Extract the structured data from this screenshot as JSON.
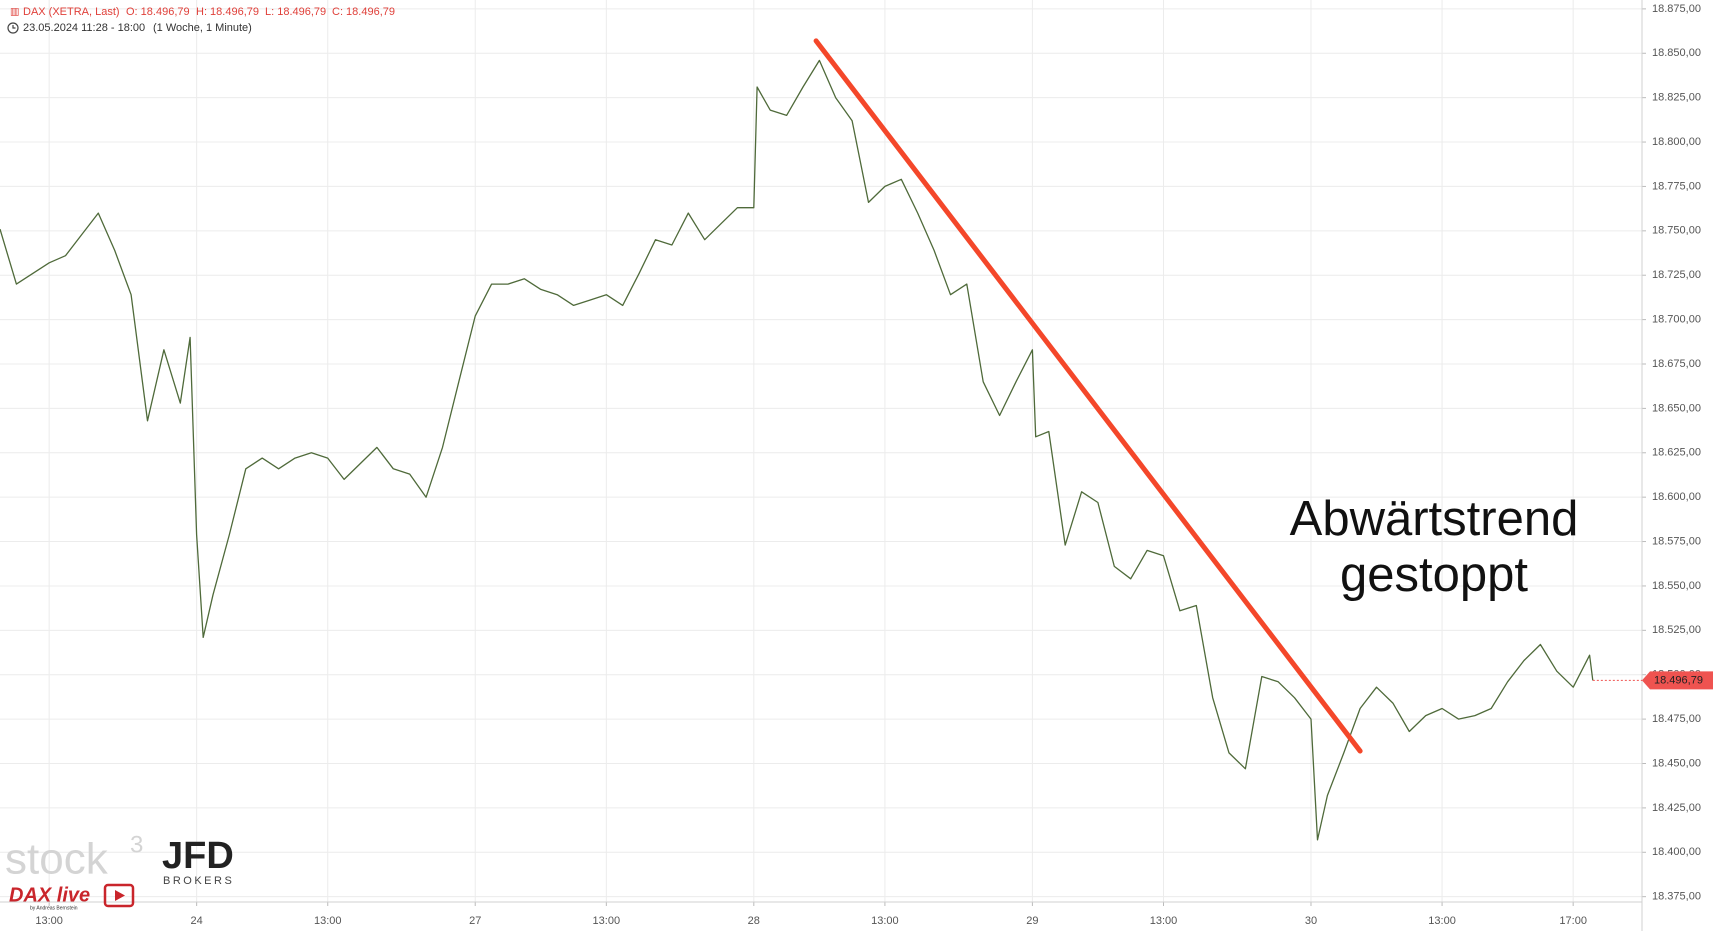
{
  "chart_data": {
    "type": "line",
    "header": {
      "instrument": "DAX (XETRA, Last)",
      "open": "O: 18.496,79",
      "high": "H: 18.496,79",
      "low": "L: 18.496,79",
      "close": "C: 18.496,79",
      "period": "23.05.2024 11:28 - 18:00",
      "interval": "(1 Woche, 1 Minute)"
    },
    "x": [
      0,
      0.5,
      1,
      1.5,
      2,
      2.5,
      3,
      3.5,
      4,
      4.5,
      5,
      5.5,
      5.8,
      6,
      6.2,
      6.5,
      7,
      7.5,
      8,
      8.5,
      9,
      9.5,
      10,
      10.5,
      11,
      11.5,
      12,
      12.5,
      13,
      13.5,
      14,
      14.5,
      15,
      15.5,
      16,
      16.5,
      17,
      17.5,
      18,
      18.5,
      19,
      19.5,
      20,
      20.5,
      21,
      21.5,
      22,
      22.5,
      23,
      23.1,
      23.5,
      24,
      24.5,
      25,
      25.5,
      26,
      26.5,
      27,
      27.5,
      28,
      28.5,
      29,
      29.5,
      30,
      30.5,
      31,
      31.5,
      31.6,
      32,
      32.5,
      33,
      33.5,
      34,
      34.5,
      35,
      35.5,
      36,
      36.5,
      37,
      37.5,
      38,
      38.5,
      39,
      39.5,
      40,
      40.2,
      40.5,
      41,
      41.5,
      42,
      42.5,
      43,
      43.5,
      44,
      44.5,
      45,
      45.5,
      46,
      46.5,
      47,
      47.5,
      48,
      48.5,
      48.6
    ],
    "series": [
      {
        "name": "DAX",
        "color": "#4f6a3a",
        "values": [
          18751,
          18720,
          18726,
          18732,
          18736,
          18748,
          18760,
          18739,
          18714,
          18643,
          18683,
          18653,
          18690,
          18579,
          18521,
          18545,
          18579,
          18616,
          18622,
          18616,
          18622,
          18625,
          18622,
          18610,
          18619,
          18628,
          18616,
          18613,
          18600,
          18628,
          18665,
          18702,
          18720,
          18720,
          18723,
          18717,
          18714,
          18708,
          18711,
          18714,
          18708,
          18726,
          18745,
          18742,
          18760,
          18745,
          18754,
          18763,
          18763,
          18831,
          18818,
          18815,
          18831,
          18846,
          18825,
          18812,
          18766,
          18775,
          18779,
          18760,
          18739,
          18714,
          18720,
          18665,
          18646,
          18665,
          18683,
          18634,
          18637,
          18573,
          18603,
          18597,
          18561,
          18554,
          18570,
          18567,
          18536,
          18539,
          18487,
          18456,
          18447,
          18499,
          18496,
          18487,
          18475,
          18407,
          18432,
          18456,
          18481,
          18493,
          18484,
          18468,
          18477,
          18481,
          18475,
          18477,
          18481,
          18496,
          18508,
          18517,
          18502,
          18493,
          18511,
          18496.79
        ]
      }
    ],
    "xlim": [
      0,
      50.1
    ],
    "ylim": [
      18372,
      18880
    ],
    "xticks": [
      {
        "value": 1.5,
        "label": "13:00"
      },
      {
        "value": 6,
        "label": "24"
      },
      {
        "value": 10,
        "label": "13:00"
      },
      {
        "value": 14.5,
        "label": "27"
      },
      {
        "value": 18.5,
        "label": "13:00"
      },
      {
        "value": 23,
        "label": "28"
      },
      {
        "value": 27,
        "label": "13:00"
      },
      {
        "value": 31.5,
        "label": "29"
      },
      {
        "value": 35.5,
        "label": "13:00"
      },
      {
        "value": 40,
        "label": "30"
      },
      {
        "value": 44,
        "label": "13:00"
      },
      {
        "value": 48,
        "label": "17:00"
      }
    ],
    "yticks": [
      {
        "value": 18375,
        "label": "18.375,00"
      },
      {
        "value": 18400,
        "label": "18.400,00"
      },
      {
        "value": 18425,
        "label": "18.425,00"
      },
      {
        "value": 18450,
        "label": "18.450,00"
      },
      {
        "value": 18475,
        "label": "18.475,00"
      },
      {
        "value": 18500,
        "label": "18.500,00"
      },
      {
        "value": 18525,
        "label": "18.525,00"
      },
      {
        "value": 18550,
        "label": "18.550,00"
      },
      {
        "value": 18575,
        "label": "18.575,00"
      },
      {
        "value": 18600,
        "label": "18.600,00"
      },
      {
        "value": 18625,
        "label": "18.625,00"
      },
      {
        "value": 18650,
        "label": "18.650,00"
      },
      {
        "value": 18675,
        "label": "18.675,00"
      },
      {
        "value": 18700,
        "label": "18.700,00"
      },
      {
        "value": 18725,
        "label": "18.725,00"
      },
      {
        "value": 18750,
        "label": "18.750,00"
      },
      {
        "value": 18775,
        "label": "18.775,00"
      },
      {
        "value": 18800,
        "label": "18.800,00"
      },
      {
        "value": 18825,
        "label": "18.825,00"
      },
      {
        "value": 18850,
        "label": "18.850,00"
      },
      {
        "value": 18875,
        "label": "18.875,00"
      }
    ],
    "grid": true,
    "last_price": {
      "value": 18496.79,
      "label": "18.496,79",
      "color": "#ef5350"
    },
    "trendline": {
      "x": [
        24.9,
        41.5
      ],
      "values": [
        18857,
        18457
      ],
      "color": "#f4472a"
    },
    "annotation": [
      "Abwärtstrend",
      "gestoppt"
    ],
    "branding": {
      "stock": "stock",
      "stock_sup": "3",
      "jfd": "JFD",
      "brokers": "BROKERS",
      "dax_live": "DAX live",
      "author": "by Andreas Bernstein"
    }
  }
}
